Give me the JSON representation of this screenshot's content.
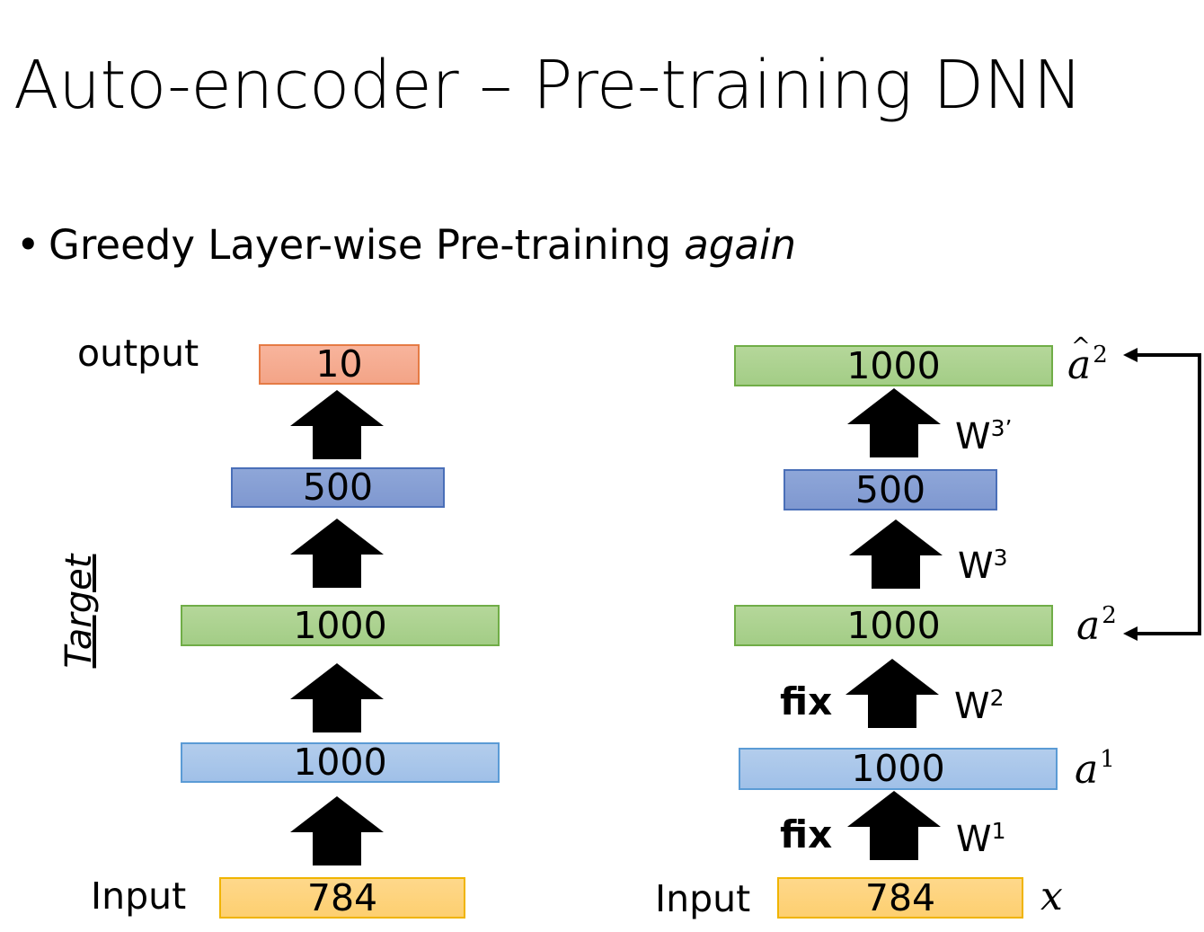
{
  "title": "Auto-encoder – Pre-training DNN",
  "bullet": {
    "symbol": "•",
    "text": "Greedy Layer-wise Pre-training ",
    "emphasis": "again"
  },
  "left_network": {
    "output_label": "output",
    "input_label": "Input",
    "side_label": "Target",
    "layers": [
      "10",
      "500",
      "1000",
      "1000",
      "784"
    ]
  },
  "right_network": {
    "input_label": "Input",
    "layers": [
      "1000",
      "500",
      "1000",
      "1000",
      "784"
    ],
    "weights": {
      "w3p": "W",
      "w3p_sup": "3’",
      "w3": "W",
      "w3_sup": "3",
      "w2": "W",
      "w2_sup": "2",
      "w1": "W",
      "w1_sup": "1"
    },
    "fix_labels": [
      "fix",
      "fix"
    ],
    "variables": {
      "a_hat_2": "a",
      "a_hat_2_sup": "2",
      "a2": "a",
      "a2_sup": "2",
      "a1": "a",
      "a1_sup": "1",
      "x": "x"
    }
  },
  "colors": {
    "orange": "#f3a487",
    "purple": "#7f98d0",
    "green": "#a3cd86",
    "blue": "#a0c0e8",
    "yellow": "#fdcf70",
    "arrow": "#000000"
  },
  "icons": {
    "block_arrow": "up-arrow-icon",
    "feedback": "bracket-arrow-icon"
  }
}
